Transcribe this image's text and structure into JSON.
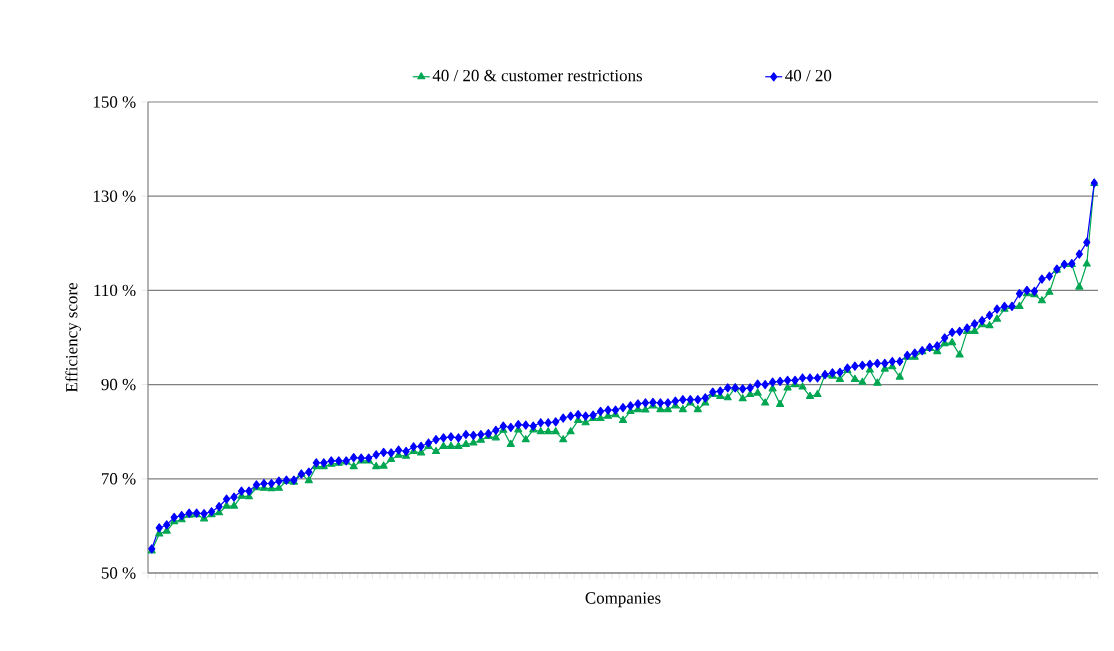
{
  "chart_data": {
    "type": "line",
    "xlabel": "Companies",
    "ylabel": "Efficiency score",
    "categories": [
      null,
      null,
      null,
      null,
      null,
      null,
      null,
      null,
      null,
      null,
      null,
      null,
      null,
      null,
      null,
      null,
      null,
      null,
      null,
      null,
      null,
      null,
      null,
      null,
      null,
      null,
      null,
      null,
      null,
      null,
      null,
      null,
      null,
      null,
      null,
      null,
      null,
      null,
      null,
      null,
      null,
      null,
      null,
      null,
      null,
      null,
      null,
      null,
      null,
      null,
      null,
      null,
      null,
      null,
      null,
      null,
      null,
      null,
      null,
      null,
      null,
      null,
      null,
      null,
      null,
      null,
      null,
      null,
      null,
      null,
      null,
      null,
      null,
      null,
      null,
      null,
      null,
      null,
      null,
      null,
      null,
      null,
      null,
      null,
      null,
      null,
      null,
      null,
      null,
      null,
      null,
      null,
      null,
      null,
      null,
      null,
      null,
      null,
      null,
      null,
      null,
      null,
      null,
      null,
      null,
      null,
      null,
      null,
      null,
      null,
      null,
      null,
      null,
      null,
      null,
      null,
      null,
      null,
      null,
      null,
      null,
      null,
      null,
      null,
      null,
      null,
      null
    ],
    "series": [
      {
        "name": "40 / 20 & customer restrictions",
        "color": "#00a651",
        "marker": "triangle",
        "values": [
          54.7,
          58.3,
          58.9,
          60.9,
          61.3,
          62.3,
          62.4,
          61.5,
          62.4,
          62.8,
          64.2,
          64.2,
          66.3,
          66.2,
          68.1,
          68.0,
          67.9,
          68.0,
          69.5,
          69.3,
          71.0,
          69.6,
          72.6,
          72.6,
          73.1,
          73.3,
          73.6,
          72.6,
          73.8,
          73.8,
          72.6,
          72.7,
          74.1,
          75.0,
          74.8,
          75.8,
          75.5,
          76.9,
          75.8,
          76.9,
          76.9,
          76.9,
          77.3,
          77.6,
          78.2,
          79.0,
          78.7,
          80.3,
          77.3,
          80.4,
          78.3,
          80.4,
          80.0,
          80.0,
          80.0,
          78.3,
          80.0,
          82.4,
          81.9,
          82.8,
          82.8,
          83.3,
          83.6,
          82.4,
          84.3,
          84.7,
          84.6,
          85.5,
          84.7,
          84.7,
          85.5,
          84.7,
          86.1,
          84.7,
          86.1,
          87.9,
          87.5,
          87.2,
          89.3,
          87.0,
          87.9,
          88.2,
          86.1,
          89.1,
          85.8,
          89.3,
          90.0,
          89.5,
          87.5,
          87.9,
          92.1,
          91.8,
          91.1,
          93.0,
          91.1,
          90.5,
          93.1,
          90.3,
          93.3,
          93.8,
          91.6,
          95.8,
          95.8,
          97.0,
          97.7,
          97.0,
          98.7,
          98.9,
          96.3,
          101.3,
          101.3,
          102.7,
          102.5,
          103.9,
          106.0,
          106.6,
          106.6,
          109.3,
          109.1,
          107.8,
          109.6,
          114.3,
          115.5,
          115.5,
          110.7,
          115.6,
          132.7
        ]
      },
      {
        "name": "40 / 20",
        "color": "#0000ff",
        "marker": "diamond",
        "values": [
          55.1,
          59.6,
          60.2,
          61.8,
          62.2,
          62.7,
          62.7,
          62.6,
          63.0,
          64.1,
          65.7,
          66.1,
          67.4,
          67.4,
          68.7,
          69.0,
          69.0,
          69.5,
          69.7,
          69.7,
          71.0,
          71.4,
          73.4,
          73.4,
          73.8,
          73.8,
          73.8,
          74.5,
          74.4,
          74.4,
          75.1,
          75.6,
          75.5,
          76.1,
          75.8,
          76.8,
          76.9,
          77.6,
          78.3,
          78.7,
          78.9,
          78.7,
          79.4,
          79.2,
          79.4,
          79.6,
          80.3,
          81.2,
          80.9,
          81.5,
          81.4,
          81.2,
          81.9,
          81.9,
          82.1,
          82.9,
          83.3,
          83.6,
          83.3,
          83.5,
          84.3,
          84.6,
          84.6,
          85.1,
          85.5,
          85.9,
          86.1,
          86.2,
          86.1,
          86.1,
          86.5,
          86.8,
          86.8,
          86.8,
          87.2,
          88.4,
          88.6,
          89.3,
          89.3,
          89.1,
          89.3,
          90.1,
          90.0,
          90.5,
          90.7,
          90.9,
          90.9,
          91.4,
          91.4,
          91.4,
          92.1,
          92.5,
          92.6,
          93.5,
          93.9,
          94.1,
          94.3,
          94.5,
          94.5,
          94.9,
          94.9,
          96.2,
          96.7,
          97.2,
          97.9,
          98.2,
          99.9,
          101.1,
          101.3,
          102.0,
          102.9,
          103.6,
          104.7,
          106.0,
          106.6,
          106.6,
          109.3,
          110.0,
          109.8,
          112.4,
          113.0,
          114.5,
          115.5,
          115.7,
          117.7,
          120.2,
          132.8
        ]
      }
    ],
    "ylim": [
      50,
      150
    ],
    "yticks": [
      {
        "value": 50,
        "label": "50 %"
      },
      {
        "value": 70,
        "label": "70 %"
      },
      {
        "value": 90,
        "label": "90 %"
      },
      {
        "value": 110,
        "label": "110 %"
      },
      {
        "value": 130,
        "label": "130 %"
      },
      {
        "value": 150,
        "label": "150 %"
      }
    ],
    "grid": "y",
    "legend": "top",
    "line_style": "solid"
  }
}
